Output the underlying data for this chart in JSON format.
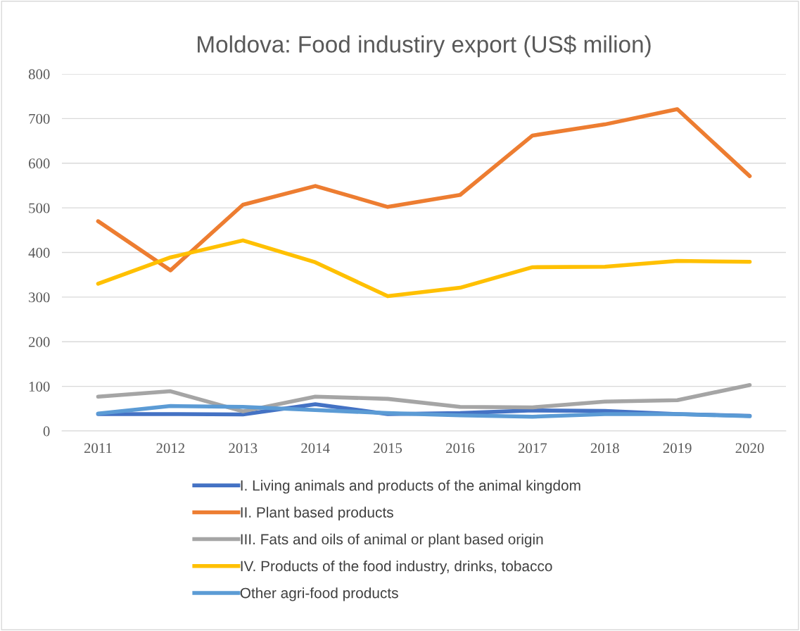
{
  "chart_data": {
    "type": "line",
    "title": "Moldova: Food industiry export (US$ milion)",
    "categories": [
      "2011",
      "2012",
      "2013",
      "2014",
      "2015",
      "2016",
      "2017",
      "2018",
      "2019",
      "2020"
    ],
    "series": [
      {
        "name": "I. Living animals and products of the animal kingdom",
        "color": "#4472c4",
        "values": [
          38,
          38,
          37,
          60,
          38,
          40,
          46,
          45,
          38,
          34
        ]
      },
      {
        "name": "II. Plant based products",
        "color": "#ed7d31",
        "values": [
          470,
          360,
          507,
          549,
          502,
          529,
          662,
          687,
          721,
          571
        ]
      },
      {
        "name": "III. Fats and oils of animal or plant based origin",
        "color": "#a5a5a5",
        "values": [
          77,
          89,
          44,
          77,
          72,
          54,
          53,
          66,
          69,
          103
        ]
      },
      {
        "name": "IV. Products of the food industry, drinks, tobacco",
        "color": "#ffc000",
        "values": [
          330,
          389,
          427,
          378,
          302,
          321,
          367,
          368,
          381,
          379
        ]
      },
      {
        "name": "Other agri-food products",
        "color": "#5b9bd5",
        "values": [
          39,
          56,
          54,
          47,
          40,
          35,
          32,
          38,
          38,
          33
        ]
      }
    ],
    "ylim": [
      0,
      800
    ],
    "yticks": [
      0,
      100,
      200,
      300,
      400,
      500,
      600,
      700,
      800
    ],
    "grid": "y",
    "legend": "bottom",
    "marker": "none",
    "line_style": "solid"
  }
}
